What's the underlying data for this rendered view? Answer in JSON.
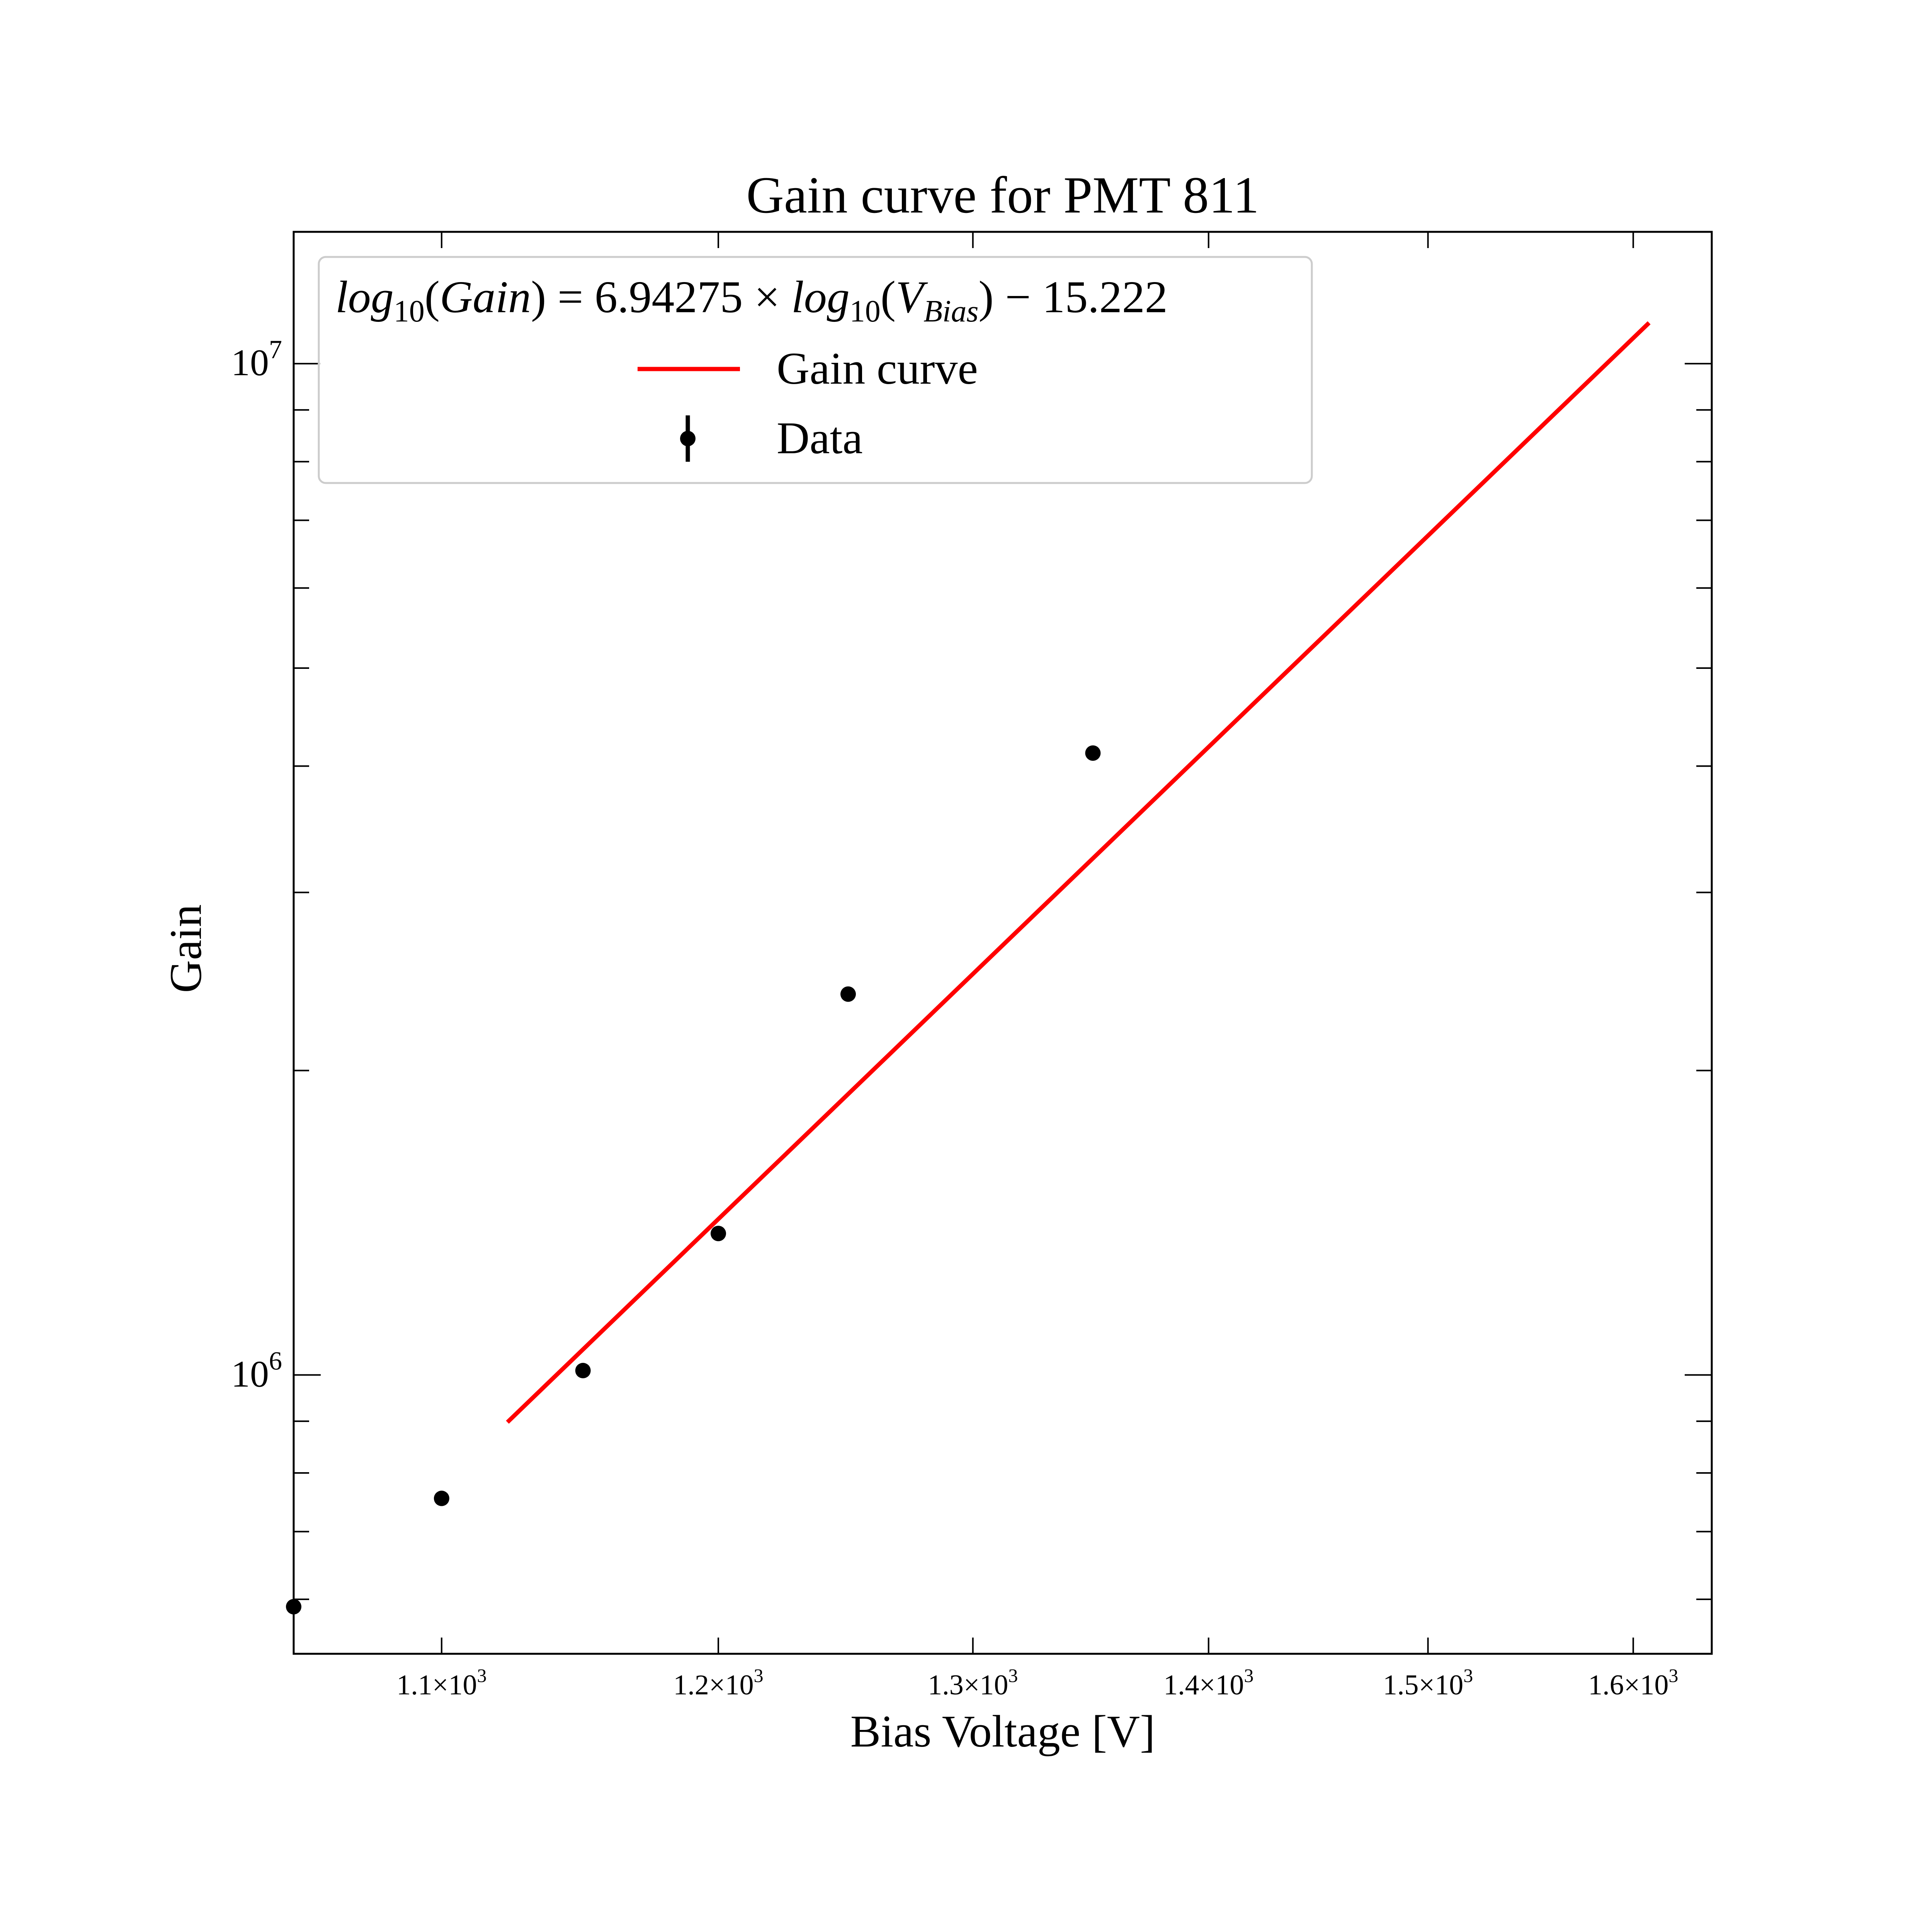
{
  "chart_data": {
    "type": "line",
    "title": "Gain curve for PMT 811",
    "xlabel": "Bias Voltage [V]",
    "ylabel": "Gain",
    "x_scale": "log",
    "y_scale": "log",
    "xlim": [
      1050,
      1640
    ],
    "ylim": [
      530000,
      13500000
    ],
    "x_ticks": [
      {
        "value": 1100,
        "mantissa": "1.1",
        "exponent": "3"
      },
      {
        "value": 1200,
        "mantissa": "1.2",
        "exponent": "3"
      },
      {
        "value": 1300,
        "mantissa": "1.3",
        "exponent": "3"
      },
      {
        "value": 1400,
        "mantissa": "1.4",
        "exponent": "3"
      },
      {
        "value": 1500,
        "mantissa": "1.5",
        "exponent": "3"
      },
      {
        "value": 1600,
        "mantissa": "1.6",
        "exponent": "3"
      }
    ],
    "y_ticks": [
      {
        "value": 1000000,
        "base": "10",
        "exponent": "6"
      },
      {
        "value": 10000000,
        "base": "10",
        "exponent": "7"
      }
    ],
    "y_minor_ticks": [
      600000,
      700000,
      800000,
      900000,
      2000000,
      3000000,
      4000000,
      5000000,
      6000000,
      7000000,
      8000000,
      9000000
    ],
    "series": [
      {
        "name": "Gain curve",
        "kind": "line",
        "color": "#ff0000",
        "x": [
          1123,
          1608
        ],
        "y": [
          898000,
          10975000
        ]
      },
      {
        "name": "Data",
        "kind": "scatter",
        "color": "#000000",
        "x": [
          1050,
          1100,
          1150,
          1200,
          1250,
          1350
        ],
        "y": [
          590000,
          755000,
          1010000,
          1380000,
          2380000,
          4120000
        ]
      }
    ],
    "legend": {
      "position": "top-left",
      "equation": {
        "lhs_func": "log",
        "lhs_sub": "10",
        "lhs_arg": "Gain",
        "eq": "=",
        "coef": "6.94275",
        "times": "×",
        "rhs_func": "log",
        "rhs_sub": "10",
        "rhs_var": "V",
        "rhs_var_sub": "Bias",
        "minus": "−",
        "intercept": "15.222"
      },
      "entries": [
        {
          "label": "Gain curve",
          "marker": "line",
          "color": "#ff0000"
        },
        {
          "label": "Data",
          "marker": "errorbar-point",
          "color": "#000000"
        }
      ]
    },
    "grid": false
  }
}
